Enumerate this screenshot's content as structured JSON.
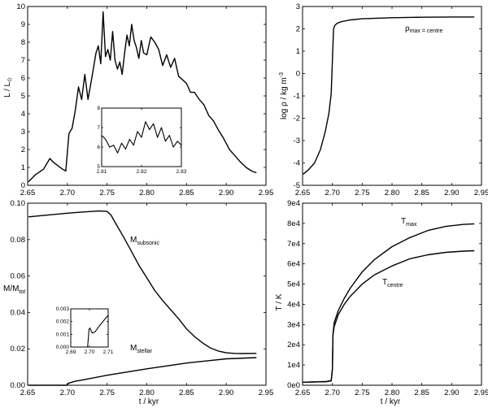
{
  "chart_data": [
    {
      "id": "luminosity",
      "type": "line",
      "ylabel": "L / L⊙",
      "xlabel": "",
      "xlim": [
        2.65,
        2.95
      ],
      "ylim": [
        0,
        10
      ],
      "xticks": [
        "2.65",
        "2.70",
        "2.75",
        "2.80",
        "2.85",
        "2.90",
        "2.95"
      ],
      "yticks": [
        "0",
        "1",
        "2",
        "3",
        "4",
        "5",
        "6",
        "7",
        "8",
        "9",
        "10"
      ],
      "series": [
        {
          "name": "L",
          "x": [
            2.651,
            2.66,
            2.67,
            2.678,
            2.682,
            2.688,
            2.694,
            2.698,
            2.702,
            2.706,
            2.71,
            2.714,
            2.718,
            2.722,
            2.726,
            2.73,
            2.733,
            2.736,
            2.739,
            2.742,
            2.745,
            2.748,
            2.751,
            2.754,
            2.757,
            2.76,
            2.763,
            2.766,
            2.769,
            2.772,
            2.775,
            2.778,
            2.781,
            2.784,
            2.787,
            2.79,
            2.793,
            2.796,
            2.8,
            2.805,
            2.81,
            2.815,
            2.82,
            2.825,
            2.83,
            2.835,
            2.84,
            2.845,
            2.85,
            2.855,
            2.86,
            2.866,
            2.872,
            2.878,
            2.884,
            2.89,
            2.897,
            2.904,
            2.912,
            2.918,
            2.925,
            2.932,
            2.938
          ],
          "values": [
            0.2,
            0.6,
            0.9,
            1.5,
            1.3,
            1.1,
            0.9,
            0.8,
            2.9,
            3.2,
            4.2,
            5.5,
            4.8,
            6.2,
            4.8,
            5.8,
            6.6,
            7.4,
            7.8,
            6.8,
            9.7,
            7.2,
            7.6,
            7.0,
            8.6,
            7.0,
            6.5,
            6.9,
            6.2,
            7.4,
            8.4,
            7.8,
            9.0,
            8.1,
            7.7,
            7.1,
            8.1,
            7.4,
            7.3,
            8.3,
            8.0,
            7.6,
            6.7,
            7.3,
            6.6,
            7.1,
            6.1,
            5.9,
            5.7,
            5.2,
            5.2,
            4.8,
            4.5,
            3.9,
            3.6,
            3.1,
            2.6,
            2.0,
            1.6,
            1.3,
            1.0,
            0.8,
            0.7
          ]
        }
      ],
      "inset": {
        "type": "line",
        "xlim": [
          2.81,
          2.83
        ],
        "ylim": [
          5,
          8
        ],
        "xticks": [
          "2.81",
          "2.82",
          "2.83"
        ],
        "yticks": [
          "5",
          "6",
          "7",
          "8"
        ],
        "x": [
          2.81,
          2.811,
          2.812,
          2.813,
          2.814,
          2.815,
          2.816,
          2.817,
          2.818,
          2.819,
          2.82,
          2.821,
          2.822,
          2.823,
          2.824,
          2.825,
          2.826,
          2.827,
          2.828,
          2.829,
          2.83
        ],
        "values": [
          6.6,
          6.4,
          6.0,
          6.1,
          5.7,
          6.2,
          5.9,
          6.4,
          6.1,
          6.8,
          6.5,
          7.3,
          6.9,
          7.2,
          6.5,
          7.0,
          6.3,
          6.6,
          6.0,
          6.3,
          6.1
        ]
      }
    },
    {
      "id": "density",
      "type": "line",
      "ylabel": "log ρ / kg m⁻³",
      "xlabel": "",
      "xlim": [
        2.65,
        2.95
      ],
      "ylim": [
        -5,
        3
      ],
      "xticks": [
        "2.65",
        "2.70",
        "2.75",
        "2.80",
        "2.85",
        "2.90",
        "2.95"
      ],
      "yticks": [
        "-5",
        "-4",
        "-3",
        "-2",
        "-1",
        "0",
        "1",
        "2",
        "3"
      ],
      "annotation": "ρmax = ρcentre",
      "series": [
        {
          "name": "ρmax = ρcentre",
          "x": [
            2.651,
            2.66,
            2.67,
            2.68,
            2.688,
            2.694,
            2.698,
            2.7,
            2.702,
            2.704,
            2.708,
            2.715,
            2.73,
            2.75,
            2.8,
            2.85,
            2.9,
            2.938
          ],
          "values": [
            -4.5,
            -4.3,
            -4.0,
            -3.4,
            -2.6,
            -1.8,
            -0.9,
            0.6,
            2.0,
            2.15,
            2.25,
            2.32,
            2.4,
            2.45,
            2.5,
            2.52,
            2.53,
            2.53
          ]
        }
      ]
    },
    {
      "id": "mass",
      "type": "line",
      "ylabel": "M / M_tot",
      "xlabel": "t / kyr",
      "xlim": [
        2.65,
        2.95
      ],
      "ylim": [
        0,
        0.1
      ],
      "xticks": [
        "2.65",
        "2.70",
        "2.75",
        "2.80",
        "2.85",
        "2.90",
        "2.95"
      ],
      "yticks": [
        "0.00",
        "0.02",
        "0.04",
        "0.06",
        "0.08",
        "0.10"
      ],
      "series": [
        {
          "name": "M_subsonic",
          "x": [
            2.651,
            2.7,
            2.72,
            2.74,
            2.75,
            2.755,
            2.76,
            2.77,
            2.78,
            2.79,
            2.8,
            2.81,
            2.82,
            2.83,
            2.84,
            2.85,
            2.86,
            2.87,
            2.88,
            2.89,
            2.9,
            2.91,
            2.92,
            2.938
          ],
          "values": [
            0.0925,
            0.0945,
            0.0952,
            0.0957,
            0.0955,
            0.0935,
            0.0895,
            0.082,
            0.074,
            0.066,
            0.059,
            0.052,
            0.0465,
            0.0415,
            0.0365,
            0.031,
            0.0268,
            0.0233,
            0.0205,
            0.0188,
            0.0178,
            0.0175,
            0.0174,
            0.0175
          ]
        },
        {
          "name": "M_stellar",
          "x": [
            2.651,
            2.699,
            2.7,
            2.702,
            2.71,
            2.72,
            2.75,
            2.8,
            2.85,
            2.9,
            2.938
          ],
          "values": [
            0.0,
            0.0,
            0.0005,
            0.0012,
            0.0022,
            0.003,
            0.0055,
            0.009,
            0.0122,
            0.0145,
            0.0152
          ]
        }
      ],
      "inset": {
        "type": "line",
        "xlim": [
          2.69,
          2.71
        ],
        "ylim": [
          0.0,
          0.003
        ],
        "xticks": [
          "2.69",
          "2.70",
          "2.71"
        ],
        "yticks": [
          "0.000",
          "0.001",
          "0.002",
          "0.003"
        ],
        "x": [
          2.69,
          2.699,
          2.6998,
          2.7002,
          2.7015,
          2.703,
          2.705,
          2.71
        ],
        "values": [
          0.0,
          0.0,
          0.0014,
          0.0015,
          0.0011,
          0.0012,
          0.0016,
          0.0025
        ]
      }
    },
    {
      "id": "temperature",
      "type": "line",
      "ylabel": "T / K",
      "xlabel": "t / kyr",
      "xlim": [
        2.65,
        2.95
      ],
      "ylim": [
        0,
        90000
      ],
      "xticks": [
        "2.65",
        "2.70",
        "2.75",
        "2.80",
        "2.85",
        "2.90",
        "2.95"
      ],
      "yticks": [
        "0e0",
        "1e4",
        "2e4",
        "3e4",
        "4e4",
        "5e4",
        "6e4",
        "7e4",
        "8e4",
        "9e4"
      ],
      "series": [
        {
          "name": "T_max",
          "x": [
            2.651,
            2.69,
            2.698,
            2.7,
            2.701,
            2.703,
            2.71,
            2.72,
            2.73,
            2.75,
            2.77,
            2.8,
            2.83,
            2.86,
            2.89,
            2.92,
            2.938
          ],
          "values": [
            1500,
            1800,
            2200,
            8000,
            25000,
            31000,
            37000,
            43000,
            48000,
            56000,
            62000,
            68500,
            73000,
            76500,
            78500,
            79500,
            79800
          ]
        },
        {
          "name": "T_centre",
          "x": [
            2.651,
            2.69,
            2.698,
            2.7,
            2.701,
            2.703,
            2.71,
            2.72,
            2.73,
            2.75,
            2.77,
            2.8,
            2.83,
            2.86,
            2.89,
            2.92,
            2.938
          ],
          "values": [
            1500,
            1800,
            2200,
            8000,
            25000,
            29000,
            35000,
            40000,
            44000,
            50000,
            54500,
            59000,
            62500,
            64500,
            65700,
            66300,
            66500
          ]
        }
      ]
    }
  ],
  "labels": {
    "lum_ylabel_main": "L / L",
    "lum_ylabel_sub": "⊙",
    "rho_ylabel": "log ρ / kg m",
    "rho_ylabel_sup": "-3",
    "rho_annot_main": "ρ",
    "rho_annot_sub": "max = centre",
    "mass_ylabel_main": "M/M",
    "mass_ylabel_sub": "tot",
    "msub_main": "M",
    "msub_sub": "subsonic",
    "mstel_main": "M",
    "mstel_sub": "stellar",
    "temp_ylabel": "T / K",
    "tmax_main": "T",
    "tmax_sub": "max",
    "tcen_main": "T",
    "tcen_sub": "centre",
    "xlabel": "t / kyr"
  }
}
